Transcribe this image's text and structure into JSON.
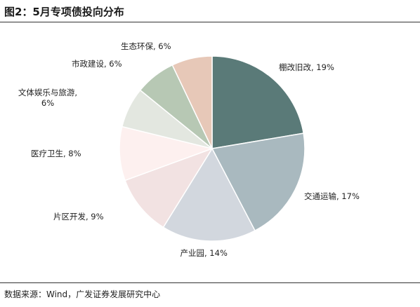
{
  "header": {
    "title": "图2：5月专项债投向分布"
  },
  "chart_data": {
    "type": "pie",
    "labels": [
      "棚改旧改, 19%",
      "交通运输, 17%",
      "产业园, 14%",
      "片区开发, 9%",
      "医疗卫生, 8%",
      "文体娱乐与旅游, 6%",
      "市政建设, 6%",
      "生态环保, 6%"
    ],
    "values": [
      19,
      17,
      14,
      9,
      8,
      6,
      6,
      6
    ],
    "colors": [
      "#5a7a78",
      "#a9b9bf",
      "#d2d7de",
      "#f2e2e2",
      "#fdf0ef",
      "#e3e7e0",
      "#b7c8b4",
      "#e7c8b8"
    ]
  },
  "footer": {
    "source": "数据来源：Wind，广发证券发展研究中心"
  }
}
